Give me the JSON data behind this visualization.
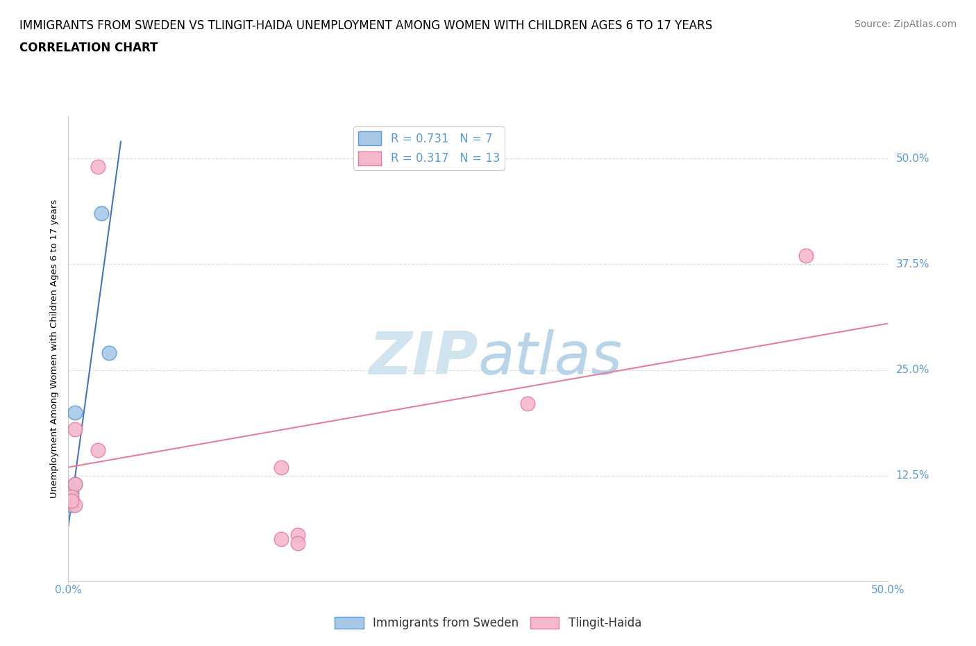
{
  "title_line1": "IMMIGRANTS FROM SWEDEN VS TLINGIT-HAIDA UNEMPLOYMENT AMONG WOMEN WITH CHILDREN AGES 6 TO 17 YEARS",
  "title_line2": "CORRELATION CHART",
  "source_text": "Source: ZipAtlas.com",
  "ylabel": "Unemployment Among Women with Children Ages 6 to 17 years",
  "xlim": [
    0,
    0.5
  ],
  "ylim": [
    0.0,
    0.55
  ],
  "xticks": [
    0.0,
    0.05,
    0.1,
    0.15,
    0.2,
    0.25,
    0.3,
    0.35,
    0.4,
    0.45,
    0.5
  ],
  "xtick_show": [
    "0.0%",
    "50.0%"
  ],
  "ytick_positions": [
    0.0,
    0.125,
    0.25,
    0.375,
    0.5
  ],
  "ytick_labels": [
    "",
    "12.5%",
    "25.0%",
    "37.5%",
    "50.0%"
  ],
  "blue_points_x": [
    0.02,
    0.025,
    0.004,
    0.004,
    0.002,
    0.002,
    0.002
  ],
  "blue_points_y": [
    0.435,
    0.27,
    0.2,
    0.115,
    0.105,
    0.098,
    0.09
  ],
  "pink_points_x": [
    0.018,
    0.004,
    0.004,
    0.28,
    0.018,
    0.004,
    0.002,
    0.45,
    0.13,
    0.13,
    0.002
  ],
  "pink_points_y": [
    0.49,
    0.18,
    0.115,
    0.21,
    0.155,
    0.09,
    0.1,
    0.385,
    0.135,
    0.05,
    0.095
  ],
  "pink_points2_x": [
    0.14,
    0.14
  ],
  "pink_points2_y": [
    0.055,
    0.045
  ],
  "blue_R": 0.731,
  "blue_N": 7,
  "pink_R": 0.317,
  "pink_N": 13,
  "blue_line_x": [
    0.0,
    0.032
  ],
  "blue_line_y": [
    0.065,
    0.52
  ],
  "pink_line_x": [
    0.0,
    0.5
  ],
  "pink_line_y": [
    0.135,
    0.305
  ],
  "blue_color": "#a8c8e8",
  "blue_edge_color": "#5b9bd5",
  "pink_color": "#f4b8cc",
  "pink_edge_color": "#e87d9b",
  "blue_line_color": "#4472c4",
  "pink_line_color": "#e87d9b",
  "grid_color": "#dddddd",
  "watermark_color": "#d0e4f0",
  "legend_label_blue": "Immigrants from Sweden",
  "legend_label_pink": "Tlingit-Haida",
  "title_fontsize": 12,
  "subtitle_fontsize": 12,
  "axis_label_fontsize": 9.5,
  "tick_fontsize": 11,
  "legend_fontsize": 12,
  "source_fontsize": 10,
  "marker_size": 220
}
